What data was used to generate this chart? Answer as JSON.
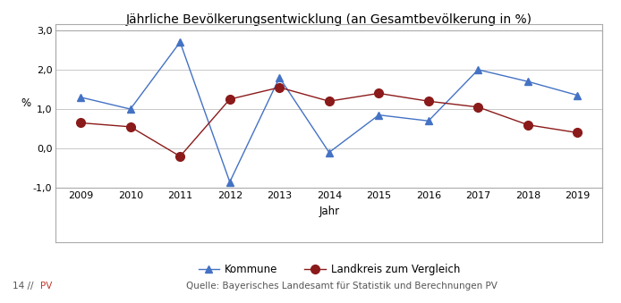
{
  "title": "Jährliche Bevölkerungsentwicklung (an Gesamtbevölkerung in %)",
  "xlabel": "Jahr",
  "ylabel": "%",
  "years": [
    2009,
    2010,
    2011,
    2012,
    2013,
    2014,
    2015,
    2016,
    2017,
    2018,
    2019
  ],
  "kommune": [
    1.3,
    1.0,
    2.7,
    -0.85,
    1.8,
    -0.1,
    0.85,
    0.7,
    2.0,
    1.7,
    1.35
  ],
  "landkreis": [
    0.65,
    0.55,
    -0.2,
    1.25,
    1.55,
    1.2,
    1.4,
    1.2,
    1.05,
    0.6,
    0.4
  ],
  "kommune_color": "#4472C4",
  "landkreis_color": "#8B1A1A",
  "ylim": [
    -1.0,
    3.0
  ],
  "yticks": [
    -1.0,
    0.0,
    1.0,
    2.0,
    3.0
  ],
  "ytick_labels": [
    "-1,0",
    "0,0",
    "1,0",
    "2,0",
    "3,0"
  ],
  "legend_kommune": "Kommune",
  "legend_landkreis": "Landkreis zum Vergleich",
  "footer_right": "Quelle: Bayerisches Landesamt für Statistik und Berechnungen PV",
  "bg_color": "#FFFFFF",
  "grid_color": "#C8C8C8",
  "title_fontsize": 10,
  "label_fontsize": 8.5,
  "tick_fontsize": 8,
  "legend_fontsize": 8.5,
  "footer_fontsize": 7.5
}
